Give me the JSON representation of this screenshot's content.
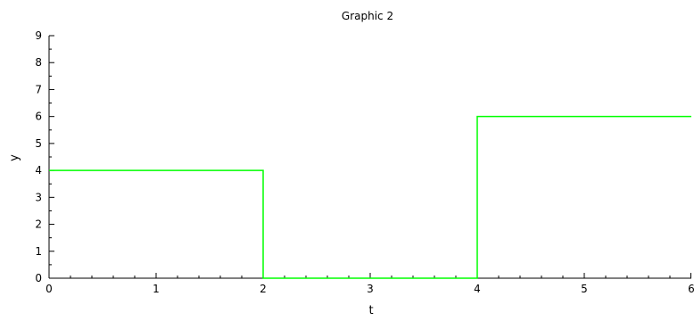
{
  "chart_data": {
    "type": "line",
    "step": true,
    "title": "Graphic 2",
    "xlabel": "t",
    "ylabel": "y",
    "xlim": [
      0,
      6
    ],
    "ylim": [
      0,
      9
    ],
    "x_ticks": [
      0,
      1,
      2,
      3,
      4,
      5,
      6
    ],
    "y_ticks": [
      0,
      1,
      2,
      3,
      4,
      5,
      6,
      7,
      8,
      9
    ],
    "x_tick_labels": [
      "0",
      "1",
      "2",
      "3",
      "4",
      "5",
      "6"
    ],
    "y_tick_labels": [
      "0",
      "1",
      "2",
      "3",
      "4",
      "5",
      "6",
      "7",
      "8",
      "9"
    ],
    "grid": false,
    "legend": "none",
    "series": [
      {
        "color": "#00ff00",
        "x": [
          0,
          2,
          2,
          4,
          4,
          6
        ],
        "y": [
          4,
          4,
          0,
          0,
          6,
          6
        ]
      }
    ]
  }
}
